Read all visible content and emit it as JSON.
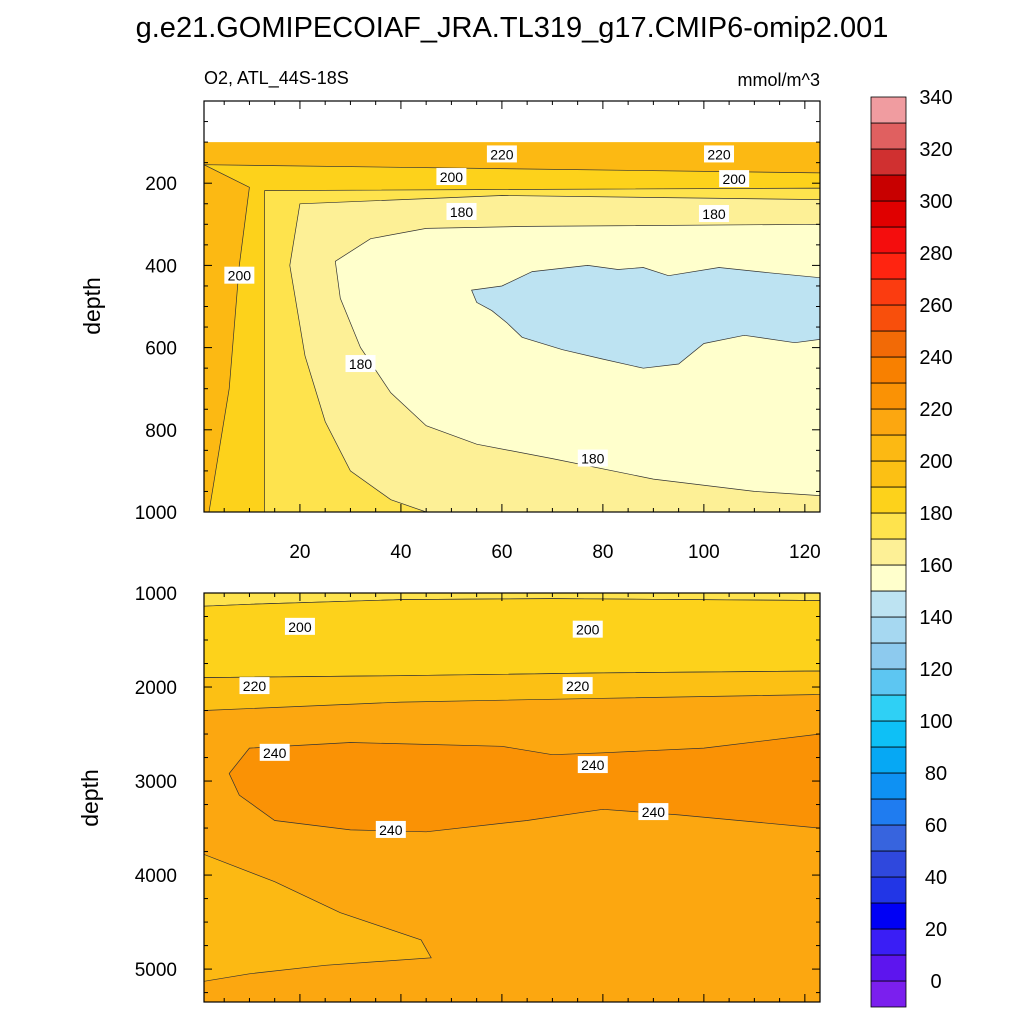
{
  "chart_data": {
    "type": "contour",
    "title": "g.e21.GOMIPECOIAF_JRA.TL319_g17.CMIP6-omip2.001",
    "variable_label": "O2, ATL_44S-18S",
    "units_label": "mmol/m^3",
    "panels": [
      {
        "name": "upper",
        "ylabel": "depth",
        "xlim": [
          1,
          123
        ],
        "ylim": [
          1000,
          0
        ],
        "xticks": [
          20,
          40,
          60,
          80,
          100,
          120
        ],
        "xtick_labels": [
          "20",
          "40",
          "60",
          "80",
          "100",
          "120"
        ],
        "yticks": [
          200,
          400,
          600,
          800,
          1000
        ],
        "ytick_labels": [
          "200",
          "400",
          "600",
          "800",
          "1000"
        ],
        "contour_labels": [
          {
            "text": "220",
            "x": 60,
            "y": 130
          },
          {
            "text": "220",
            "x": 103,
            "y": 130
          },
          {
            "text": "200",
            "x": 50,
            "y": 185
          },
          {
            "text": "200",
            "x": 106,
            "y": 190
          },
          {
            "text": "180",
            "x": 52,
            "y": 270
          },
          {
            "text": "180",
            "x": 102,
            "y": 275
          },
          {
            "text": "200",
            "x": 8,
            "y": 425
          },
          {
            "text": "180",
            "x": 32,
            "y": 640
          },
          {
            "text": "180",
            "x": 78,
            "y": 870
          }
        ],
        "regions": [
          {
            "range": "210-220",
            "color": "#fcb913",
            "outline": [
              [
                1,
                100
              ],
              [
                123,
                100
              ],
              [
                123,
                1000
              ],
              [
                1,
                1000
              ]
            ]
          },
          {
            "range": "200-210",
            "color": "#fdd21b",
            "outline": [
              [
                1,
                155
              ],
              [
                123,
                175
              ],
              [
                123,
                1000
              ],
              [
                2,
                1000
              ],
              [
                6,
                700
              ],
              [
                8,
                400
              ],
              [
                10,
                210
              ]
            ]
          },
          {
            "range": "190-200",
            "color": "#fee34d",
            "outline": [
              [
                13,
                218
              ],
              [
                123,
                212
              ],
              [
                123,
                1000
              ],
              [
                13,
                1000
              ]
            ]
          },
          {
            "range": "180-190",
            "color": "#fdf096",
            "outline": [
              [
                20,
                250
              ],
              [
                60,
                230
              ],
              [
                123,
                240
              ],
              [
                123,
                1000
              ],
              [
                45,
                1000
              ],
              [
                38,
                970
              ],
              [
                30,
                900
              ],
              [
                25,
                780
              ],
              [
                21,
                620
              ],
              [
                18,
                400
              ]
            ]
          },
          {
            "range": "170-180",
            "color": "#ffffcc",
            "outline": [
              [
                34,
                335
              ],
              [
                45,
                310
              ],
              [
                65,
                305
              ],
              [
                123,
                300
              ],
              [
                123,
                960
              ],
              [
                110,
                950
              ],
              [
                90,
                920
              ],
              [
                70,
                870
              ],
              [
                55,
                835
              ],
              [
                45,
                790
              ],
              [
                38,
                710
              ],
              [
                32,
                600
              ],
              [
                28,
                480
              ],
              [
                27,
                390
              ]
            ]
          },
          {
            "range": "160-170",
            "color": "#bde3f2",
            "outline": [
              [
                54,
                460
              ],
              [
                60,
                450
              ],
              [
                66,
                415
              ],
              [
                77,
                400
              ],
              [
                83,
                410
              ],
              [
                88,
                405
              ],
              [
                93,
                425
              ],
              [
                103,
                405
              ],
              [
                113,
                418
              ],
              [
                123,
                430
              ],
              [
                123,
                580
              ],
              [
                118,
                588
              ],
              [
                108,
                570
              ],
              [
                100,
                590
              ],
              [
                95,
                640
              ],
              [
                88,
                650
              ],
              [
                80,
                628
              ],
              [
                72,
                605
              ],
              [
                64,
                575
              ],
              [
                61,
                540
              ],
              [
                58,
                510
              ],
              [
                55,
                490
              ]
            ]
          }
        ]
      },
      {
        "name": "lower",
        "ylabel": "depth",
        "xlim": [
          1,
          123
        ],
        "ylim": [
          5350,
          1000
        ],
        "yticks": [
          1000,
          2000,
          3000,
          4000,
          5000
        ],
        "ytick_labels": [
          "1000",
          "2000",
          "3000",
          "4000",
          "5000"
        ],
        "contour_labels": [
          {
            "text": "200",
            "x": 20,
            "y": 1360
          },
          {
            "text": "200",
            "x": 77,
            "y": 1390
          },
          {
            "text": "220",
            "x": 11,
            "y": 1990
          },
          {
            "text": "220",
            "x": 75,
            "y": 1990
          },
          {
            "text": "240",
            "x": 15,
            "y": 2700
          },
          {
            "text": "240",
            "x": 78,
            "y": 2830
          },
          {
            "text": "240",
            "x": 38,
            "y": 3520
          },
          {
            "text": "240",
            "x": 90,
            "y": 3330
          }
        ],
        "regions": [
          {
            "range": "220-230",
            "color": "#fca710",
            "outline": [
              [
                1,
                1000
              ],
              [
                123,
                1000
              ],
              [
                123,
                5350
              ],
              [
                1,
                5350
              ]
            ]
          },
          {
            "range": "230-240",
            "color": "#fa9205",
            "outline": [
              [
                6,
                2920
              ],
              [
                10,
                2650
              ],
              [
                30,
                2590
              ],
              [
                60,
                2630
              ],
              [
                70,
                2720
              ],
              [
                80,
                2700
              ],
              [
                100,
                2650
              ],
              [
                123,
                2500
              ],
              [
                123,
                3500
              ],
              [
                95,
                3360
              ],
              [
                80,
                3300
              ],
              [
                65,
                3420
              ],
              [
                45,
                3540
              ],
              [
                30,
                3520
              ],
              [
                15,
                3420
              ],
              [
                8,
                3150
              ]
            ]
          },
          {
            "range": "200-210",
            "color": "#fee34d",
            "outline": [
              [
                1,
                1000
              ],
              [
                123,
                1000
              ],
              [
                123,
                1080
              ],
              [
                70,
                1060
              ],
              [
                40,
                1070
              ],
              [
                10,
                1120
              ],
              [
                1,
                1140
              ]
            ]
          },
          {
            "range": "210-220",
            "color": "#fdd21b",
            "outline": [
              [
                1,
                1140
              ],
              [
                10,
                1120
              ],
              [
                40,
                1070
              ],
              [
                70,
                1060
              ],
              [
                123,
                1080
              ],
              [
                123,
                1830
              ],
              [
                80,
                1850
              ],
              [
                40,
                1880
              ],
              [
                1,
                1900
              ]
            ]
          },
          {
            "range": "215-220",
            "color": "#fcc014",
            "outline": [
              [
                1,
                1900
              ],
              [
                40,
                1880
              ],
              [
                80,
                1850
              ],
              [
                123,
                1830
              ],
              [
                123,
                2080
              ],
              [
                80,
                2120
              ],
              [
                40,
                2160
              ],
              [
                1,
                2250
              ]
            ]
          },
          {
            "range": "220-225",
            "color": "#fcb913",
            "outline": [
              [
                1,
                3780
              ],
              [
                15,
                4070
              ],
              [
                28,
                4400
              ],
              [
                44,
                4690
              ],
              [
                46,
                4880
              ],
              [
                25,
                4960
              ],
              [
                10,
                5050
              ],
              [
                1,
                5130
              ]
            ]
          }
        ]
      }
    ],
    "colorbar": {
      "tick_labels": [
        "0",
        "20",
        "40",
        "60",
        "80",
        "100",
        "120",
        "140",
        "160",
        "180",
        "200",
        "220",
        "240",
        "260",
        "280",
        "300",
        "320",
        "340"
      ],
      "colors": [
        "#7b1fee",
        "#5d15ee",
        "#3a1ef5",
        "#0000f5",
        "#2236e6",
        "#2f48dd",
        "#3764de",
        "#1f7cf0",
        "#0e91f3",
        "#06a8f4",
        "#0ec0f6",
        "#2fd0f5",
        "#5dc6f2",
        "#8dcaee",
        "#a6d8f1",
        "#bde3f2",
        "#ffffcc",
        "#fdf096",
        "#fee34d",
        "#fdd21b",
        "#fcc014",
        "#fcb913",
        "#fca710",
        "#fa9205",
        "#f88000",
        "#f26a06",
        "#f84f0c",
        "#fb3c10",
        "#ff2410",
        "#f40d0d",
        "#e00000",
        "#c80000",
        "#d03030",
        "#e06060",
        "#f09ca0"
      ]
    }
  }
}
